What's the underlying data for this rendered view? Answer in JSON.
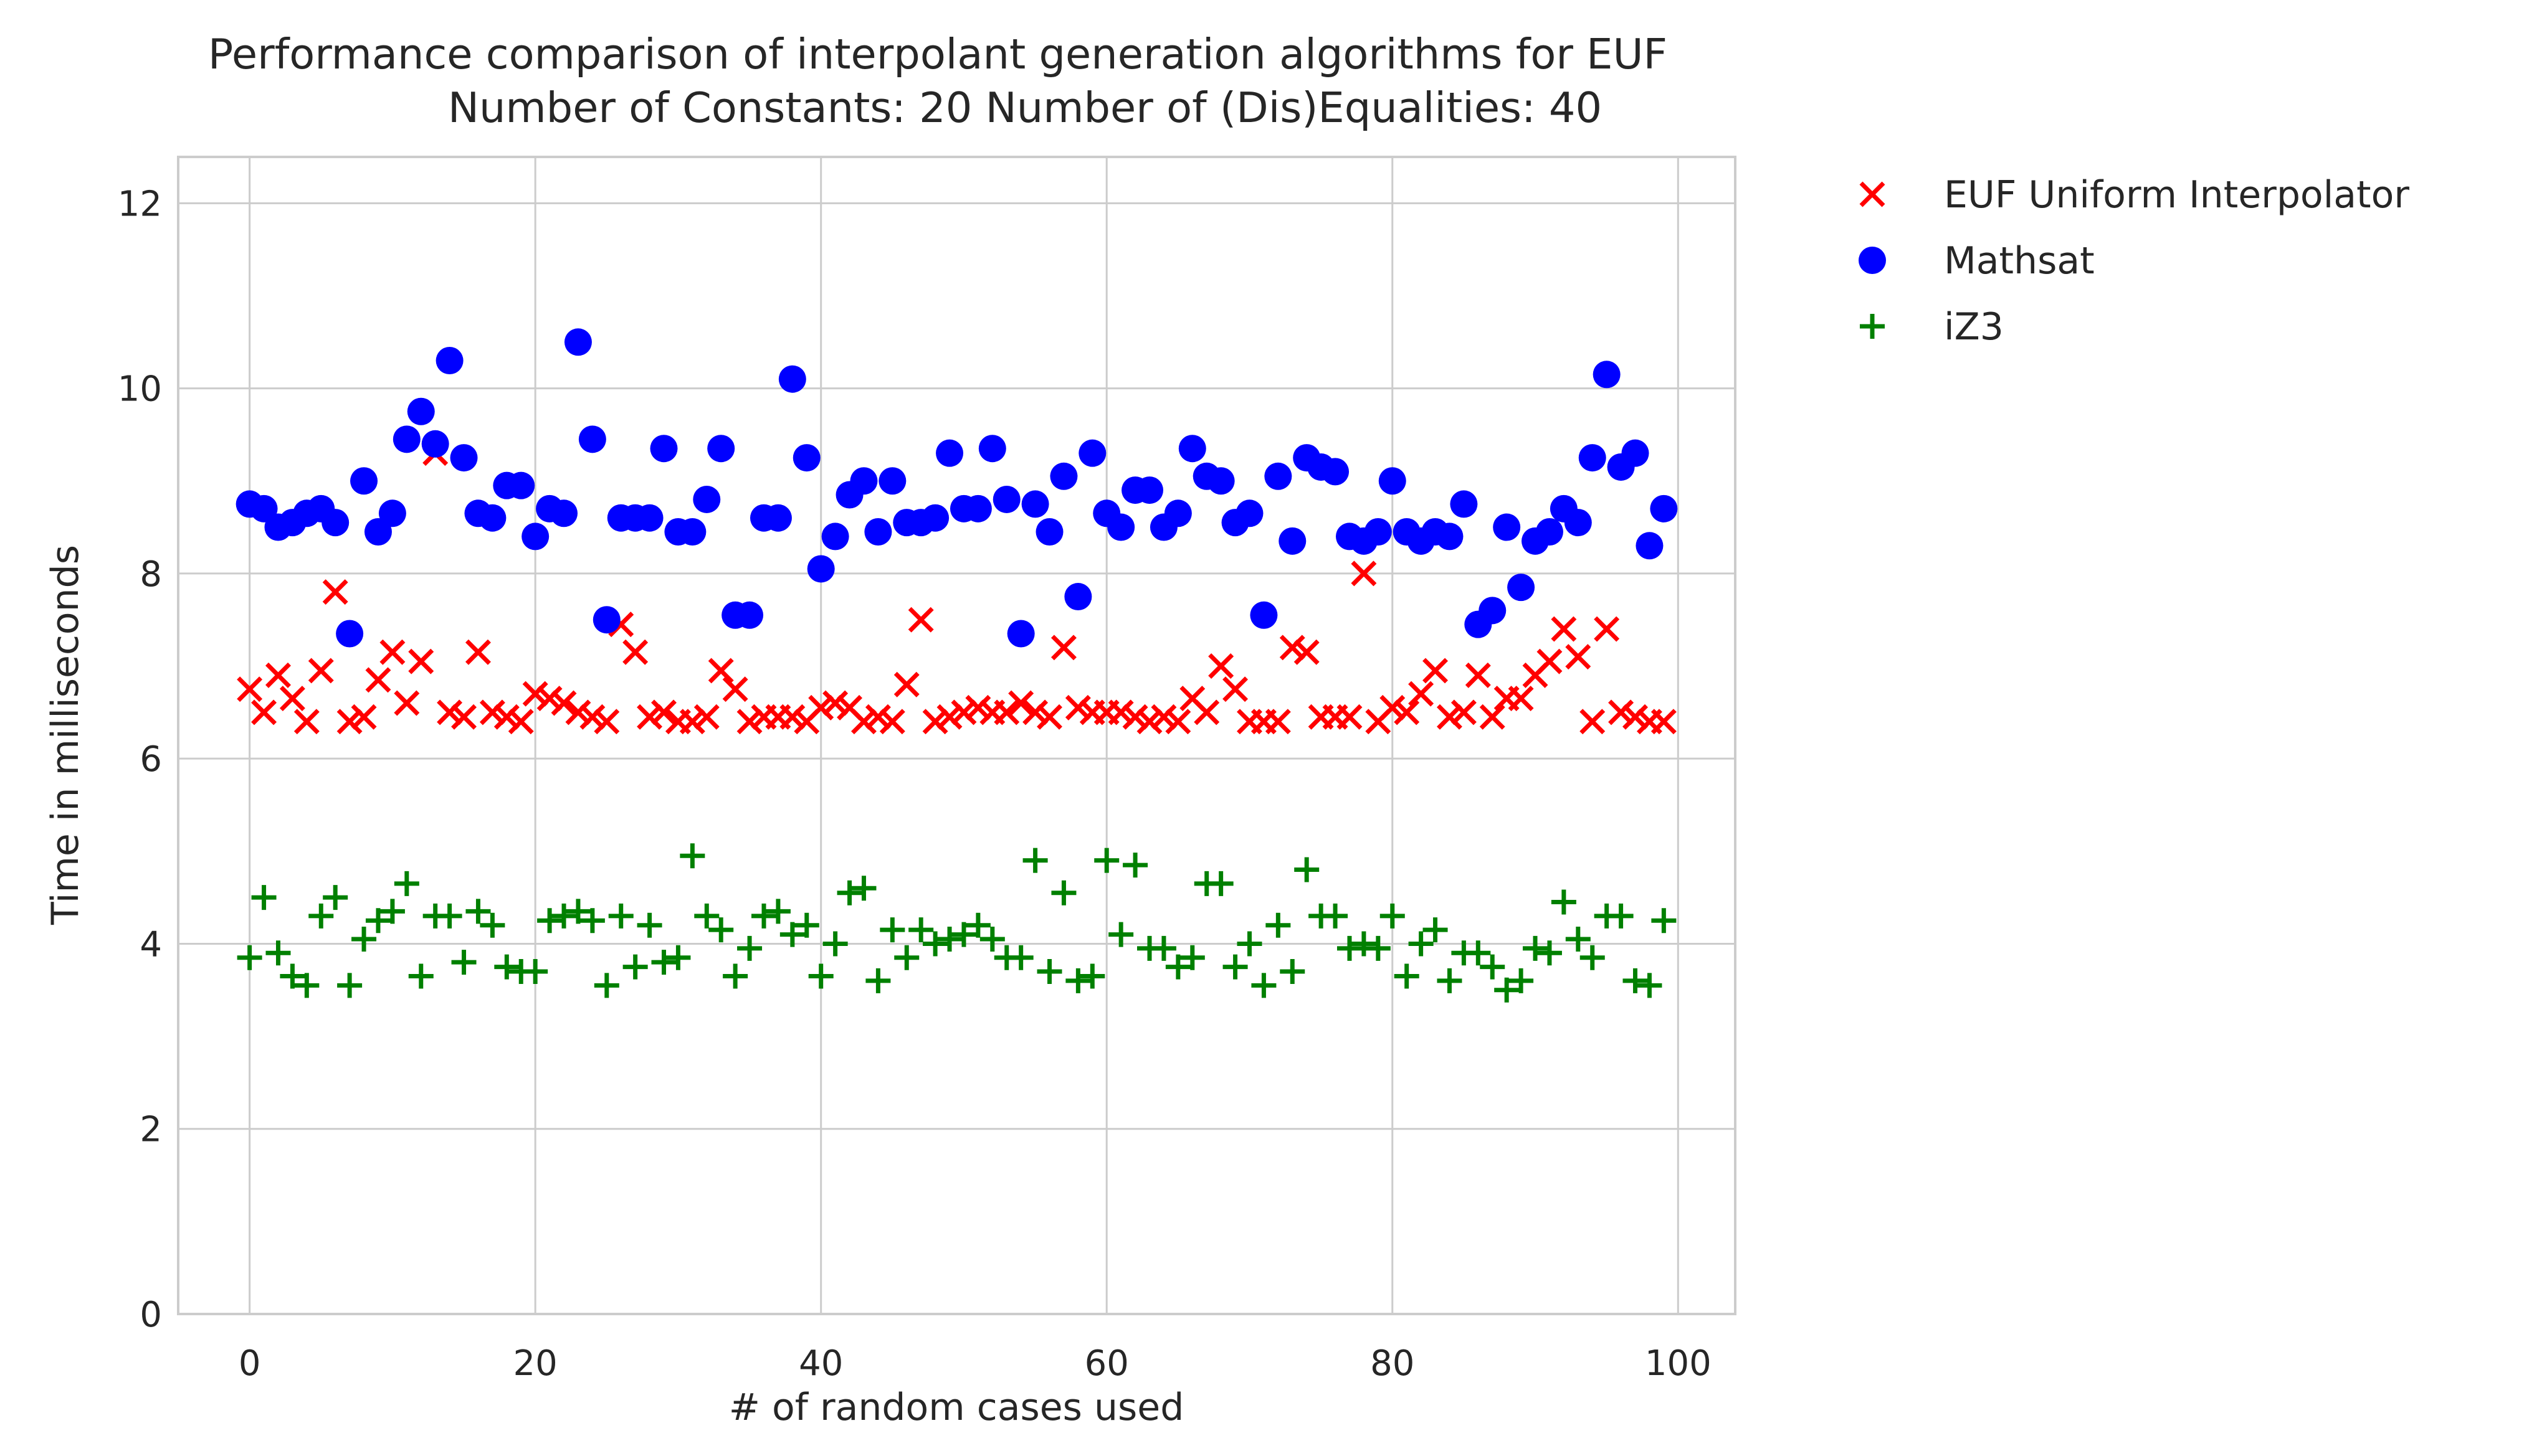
{
  "chart_data": {
    "type": "scatter",
    "title": "Performance comparison of interpolant generation algorithms for EUF",
    "subtitle": "Number of Constants: 20 Number of (Dis)Equalities: 40",
    "xlabel": "# of random cases used",
    "ylabel": "Time in milliseconds",
    "xlim": [
      -5,
      104
    ],
    "ylim": [
      0,
      12.5
    ],
    "x_ticks": [
      0,
      20,
      40,
      60,
      80,
      100
    ],
    "y_ticks": [
      0,
      2,
      4,
      6,
      8,
      10,
      12
    ],
    "grid": true,
    "legend_position": "outside-top-right",
    "series": [
      {
        "name": "EUF Uniform Interpolator",
        "marker": "x",
        "color": "#ff0000",
        "x": [
          0,
          1,
          2,
          3,
          4,
          5,
          6,
          7,
          8,
          9,
          10,
          11,
          12,
          13,
          14,
          15,
          16,
          17,
          18,
          19,
          20,
          21,
          22,
          23,
          24,
          25,
          26,
          27,
          28,
          29,
          30,
          31,
          32,
          33,
          34,
          35,
          36,
          37,
          38,
          39,
          40,
          41,
          42,
          43,
          44,
          45,
          46,
          47,
          48,
          49,
          50,
          51,
          52,
          53,
          54,
          55,
          56,
          57,
          58,
          59,
          60,
          61,
          62,
          63,
          64,
          65,
          66,
          67,
          68,
          69,
          70,
          71,
          72,
          73,
          74,
          75,
          76,
          77,
          78,
          79,
          80,
          81,
          82,
          83,
          84,
          85,
          86,
          87,
          88,
          89,
          90,
          91,
          92,
          93,
          94,
          95,
          96,
          97,
          98,
          99
        ],
        "y": [
          6.75,
          6.5,
          6.9,
          6.65,
          6.4,
          6.95,
          7.8,
          6.4,
          6.45,
          6.85,
          7.15,
          6.6,
          7.05,
          9.3,
          6.5,
          6.45,
          7.15,
          6.5,
          6.45,
          6.4,
          6.7,
          6.65,
          6.6,
          6.5,
          6.45,
          6.4,
          7.45,
          7.15,
          6.45,
          6.5,
          6.4,
          6.4,
          6.45,
          6.95,
          6.75,
          6.4,
          6.45,
          6.45,
          6.45,
          6.4,
          6.55,
          6.6,
          6.55,
          6.4,
          6.45,
          6.4,
          6.8,
          7.5,
          6.4,
          6.45,
          6.5,
          6.55,
          6.5,
          6.5,
          6.6,
          6.5,
          6.45,
          7.2,
          6.55,
          6.5,
          6.5,
          6.5,
          6.45,
          6.4,
          6.45,
          6.4,
          6.65,
          6.5,
          7.0,
          6.75,
          6.4,
          6.4,
          6.4,
          7.2,
          7.15,
          6.45,
          6.45,
          6.45,
          8.0,
          6.4,
          6.55,
          6.5,
          6.7,
          6.95,
          6.45,
          6.5,
          6.9,
          6.45,
          6.65,
          6.65,
          6.9,
          7.05,
          7.4,
          7.1,
          6.4,
          7.4,
          6.5,
          6.45,
          6.4,
          6.4
        ]
      },
      {
        "name": "Mathsat",
        "marker": "o",
        "color": "#0000ff",
        "x": [
          0,
          1,
          2,
          3,
          4,
          5,
          6,
          7,
          8,
          9,
          10,
          11,
          12,
          13,
          14,
          15,
          16,
          17,
          18,
          19,
          20,
          21,
          22,
          23,
          24,
          25,
          26,
          27,
          28,
          29,
          30,
          31,
          32,
          33,
          34,
          35,
          36,
          37,
          38,
          39,
          40,
          41,
          42,
          43,
          44,
          45,
          46,
          47,
          48,
          49,
          50,
          51,
          52,
          53,
          54,
          55,
          56,
          57,
          58,
          59,
          60,
          61,
          62,
          63,
          64,
          65,
          66,
          67,
          68,
          69,
          70,
          71,
          72,
          73,
          74,
          75,
          76,
          77,
          78,
          79,
          80,
          81,
          82,
          83,
          84,
          85,
          86,
          87,
          88,
          89,
          90,
          91,
          92,
          93,
          94,
          95,
          96,
          97,
          98,
          99
        ],
        "y": [
          8.75,
          8.7,
          8.5,
          8.55,
          8.65,
          8.7,
          8.55,
          7.35,
          9.0,
          8.45,
          8.65,
          9.45,
          9.75,
          9.4,
          10.3,
          9.25,
          8.65,
          8.6,
          8.95,
          8.95,
          8.4,
          8.7,
          8.65,
          10.5,
          9.45,
          7.5,
          8.6,
          8.6,
          8.6,
          9.35,
          8.45,
          8.45,
          8.8,
          9.35,
          7.55,
          7.55,
          8.6,
          8.6,
          10.1,
          9.25,
          8.05,
          8.4,
          8.85,
          9.0,
          8.45,
          9.0,
          8.55,
          8.55,
          8.6,
          9.3,
          8.7,
          8.7,
          9.35,
          8.8,
          7.35,
          8.75,
          8.45,
          9.05,
          7.75,
          9.3,
          8.65,
          8.5,
          8.9,
          8.9,
          8.5,
          8.65,
          9.35,
          9.05,
          9.0,
          8.55,
          8.65,
          7.55,
          9.05,
          8.35,
          9.25,
          9.15,
          9.1,
          8.4,
          8.35,
          8.45,
          9.0,
          8.45,
          8.35,
          8.45,
          8.4,
          8.75,
          7.45,
          7.6,
          8.5,
          7.85,
          8.35,
          8.45,
          8.7,
          8.55,
          9.25,
          10.15,
          9.15,
          9.3,
          8.3,
          8.7
        ]
      },
      {
        "name": "iZ3",
        "marker": "+",
        "color": "#008000",
        "x": [
          0,
          1,
          2,
          3,
          4,
          5,
          6,
          7,
          8,
          9,
          10,
          11,
          12,
          13,
          14,
          15,
          16,
          17,
          18,
          19,
          20,
          21,
          22,
          23,
          24,
          25,
          26,
          27,
          28,
          29,
          30,
          31,
          32,
          33,
          34,
          35,
          36,
          37,
          38,
          39,
          40,
          41,
          42,
          43,
          44,
          45,
          46,
          47,
          48,
          49,
          50,
          51,
          52,
          53,
          54,
          55,
          56,
          57,
          58,
          59,
          60,
          61,
          62,
          63,
          64,
          65,
          66,
          67,
          68,
          69,
          70,
          71,
          72,
          73,
          74,
          75,
          76,
          77,
          78,
          79,
          80,
          81,
          82,
          83,
          84,
          85,
          86,
          87,
          88,
          89,
          90,
          91,
          92,
          93,
          94,
          95,
          96,
          97,
          98,
          99
        ],
        "y": [
          3.85,
          4.5,
          3.9,
          3.65,
          3.55,
          4.3,
          4.5,
          3.55,
          4.05,
          4.25,
          4.35,
          4.65,
          3.65,
          4.3,
          4.3,
          3.8,
          4.35,
          4.2,
          3.75,
          3.7,
          3.7,
          4.25,
          4.3,
          4.35,
          4.25,
          3.55,
          4.3,
          3.75,
          4.2,
          3.8,
          3.85,
          4.95,
          4.3,
          4.15,
          3.65,
          3.95,
          4.3,
          4.35,
          4.1,
          4.2,
          3.65,
          4.0,
          4.55,
          4.6,
          3.6,
          4.15,
          3.85,
          4.15,
          4.0,
          4.05,
          4.1,
          4.2,
          4.05,
          3.85,
          3.85,
          4.9,
          3.7,
          4.55,
          3.6,
          3.65,
          4.9,
          4.1,
          4.85,
          3.95,
          3.95,
          3.75,
          3.85,
          4.65,
          4.65,
          3.75,
          4.0,
          3.55,
          4.2,
          3.7,
          4.8,
          4.3,
          4.3,
          3.95,
          4.0,
          3.95,
          4.3,
          3.65,
          4.0,
          4.15,
          3.6,
          3.9,
          3.9,
          3.75,
          3.5,
          3.6,
          3.95,
          3.9,
          4.45,
          4.05,
          3.85,
          4.3,
          4.3,
          3.6,
          3.55,
          4.25
        ]
      }
    ]
  }
}
